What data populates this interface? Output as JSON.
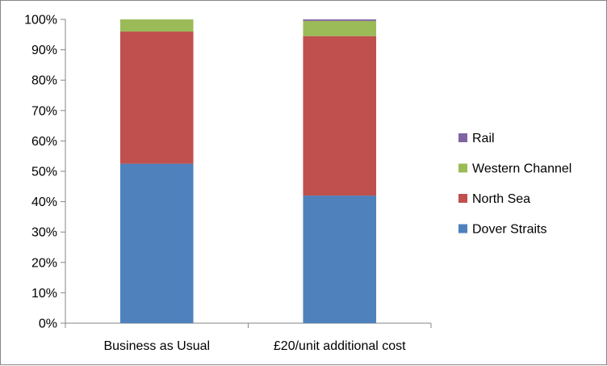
{
  "chart_data": {
    "type": "bar",
    "stacked": true,
    "percent_stacked": true,
    "categories": [
      "Business as Usual",
      "£20/unit additional cost"
    ],
    "series": [
      {
        "name": "Dover Straits",
        "color": "#4F81BD",
        "values": [
          52.5,
          42
        ]
      },
      {
        "name": "North Sea",
        "color": "#C0504D",
        "values": [
          43.5,
          52.5
        ]
      },
      {
        "name": "Western Channel",
        "color": "#9BBB59",
        "values": [
          4,
          5
        ]
      },
      {
        "name": "Rail",
        "color": "#8064A2",
        "values": [
          0,
          0.5
        ]
      }
    ],
    "ylim": [
      0,
      100
    ],
    "y_ticks": [
      "0%",
      "10%",
      "20%",
      "30%",
      "40%",
      "50%",
      "60%",
      "70%",
      "80%",
      "90%",
      "100%"
    ],
    "grid": false,
    "legend_position": "right"
  }
}
